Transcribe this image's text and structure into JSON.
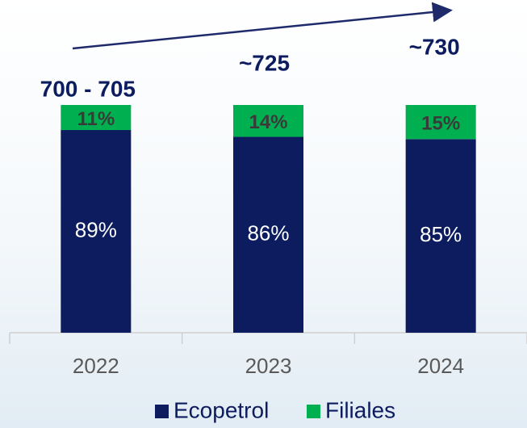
{
  "chart_data": {
    "type": "stacked_bar",
    "categories": [
      "2022",
      "2023",
      "2024"
    ],
    "series": [
      {
        "name": "Ecopetrol",
        "color": "#0c1c5f",
        "values": [
          89,
          86,
          85
        ],
        "value_labels": [
          "89%",
          "86%",
          "85%"
        ]
      },
      {
        "name": "Filiales",
        "color": "#00b050",
        "values": [
          11,
          14,
          15
        ],
        "value_labels": [
          "11%",
          "14%",
          "15%"
        ]
      }
    ],
    "ylim": [
      0,
      100
    ],
    "annotations": [
      "700 - 705",
      "~725",
      "~730"
    ],
    "legend": "bottom"
  }
}
